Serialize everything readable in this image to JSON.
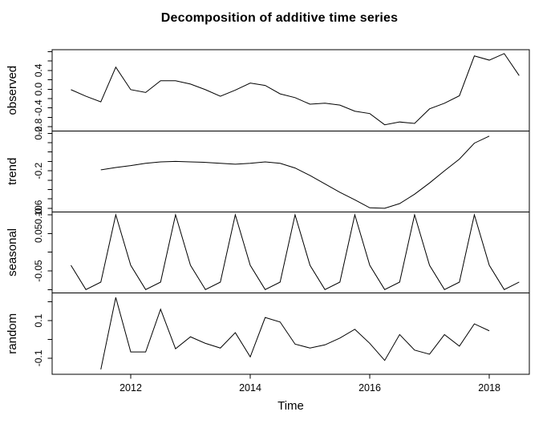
{
  "title": "Decomposition of additive time series",
  "chart_data": {
    "type": "line",
    "title": "Decomposition of additive time series",
    "xlabel": "Time",
    "line_color": "#000000",
    "background_color": "#ffffff",
    "grid": false,
    "x_step": 0.25,
    "x_domain": [
      2010.685,
      2018.67
    ],
    "x_ticks": [
      2012,
      2014,
      2016,
      2018
    ],
    "x_tick_labels": [
      "2012",
      "2014",
      "2016",
      "2018"
    ],
    "panel_bounds": [
      62,
      163.3,
      264.3,
      365.5,
      467
    ],
    "panels": [
      {
        "name": "observed",
        "x_start": 2011.0,
        "ylim": [
          -0.89,
          0.843
        ],
        "yticks": [
          0.8,
          0.6,
          0.4,
          0.2,
          0.0,
          -0.2,
          -0.4,
          -0.6,
          -0.8
        ],
        "ytick_labels": [
          "",
          "",
          "0.4",
          "",
          "0.0",
          "",
          "-0.4",
          "",
          "-0.8"
        ],
        "values": [
          -0.01,
          -0.15,
          -0.27,
          0.47,
          -0.01,
          -0.07,
          0.18,
          0.18,
          0.11,
          -0.01,
          -0.15,
          -0.02,
          0.13,
          0.08,
          -0.1,
          -0.18,
          -0.32,
          -0.3,
          -0.34,
          -0.47,
          -0.52,
          -0.76,
          -0.7,
          -0.73,
          -0.42,
          -0.3,
          -0.14,
          0.71,
          0.62,
          0.76,
          0.29
        ]
      },
      {
        "name": "trend",
        "x_start": 2011.5,
        "ylim": [
          -0.638,
          0.226
        ],
        "yticks": [
          0.2,
          0.1,
          0.0,
          -0.1,
          -0.2,
          -0.3,
          -0.4,
          -0.5,
          -0.6
        ],
        "ytick_labels": [
          "0.2",
          "",
          "",
          "",
          "-0.2",
          "",
          "",
          "",
          "-0.6"
        ],
        "values": [
          -0.19,
          -0.165,
          -0.145,
          -0.12,
          -0.105,
          -0.1,
          -0.105,
          -0.11,
          -0.12,
          -0.13,
          -0.12,
          -0.105,
          -0.12,
          -0.17,
          -0.25,
          -0.34,
          -0.43,
          -0.51,
          -0.595,
          -0.6,
          -0.55,
          -0.45,
          -0.33,
          -0.2,
          -0.075,
          0.095,
          0.17
        ]
      },
      {
        "name": "seasonal",
        "x_start": 2011.0,
        "ylim": [
          -0.109,
          0.108
        ],
        "yticks": [
          0.1,
          0.05,
          0.0,
          -0.05,
          -0.1
        ],
        "ytick_labels": [
          "0.10",
          "0.05",
          "",
          "-0.05",
          ""
        ],
        "values": [
          -0.035,
          -0.1,
          -0.08,
          0.1,
          -0.035,
          -0.1,
          -0.08,
          0.1,
          -0.035,
          -0.1,
          -0.08,
          0.1,
          -0.035,
          -0.1,
          -0.08,
          0.1,
          -0.035,
          -0.1,
          -0.08,
          0.1,
          -0.035,
          -0.1,
          -0.08,
          0.1,
          -0.035,
          -0.1,
          -0.08,
          0.1,
          -0.035,
          -0.1,
          -0.08
        ]
      },
      {
        "name": "random",
        "x_start": 2011.5,
        "ylim": [
          -0.186,
          0.248
        ],
        "yticks": [
          0.2,
          0.1,
          0.0,
          -0.1
        ],
        "ytick_labels": [
          "",
          "0.1",
          "",
          "-0.1"
        ],
        "values": [
          -0.16,
          0.224,
          -0.067,
          -0.067,
          0.161,
          -0.05,
          0.014,
          -0.021,
          -0.046,
          0.036,
          -0.093,
          0.117,
          0.093,
          -0.025,
          -0.046,
          -0.029,
          0.007,
          0.054,
          -0.021,
          -0.112,
          0.026,
          -0.057,
          -0.079,
          0.026,
          -0.036,
          0.083,
          0.046
        ]
      }
    ]
  }
}
